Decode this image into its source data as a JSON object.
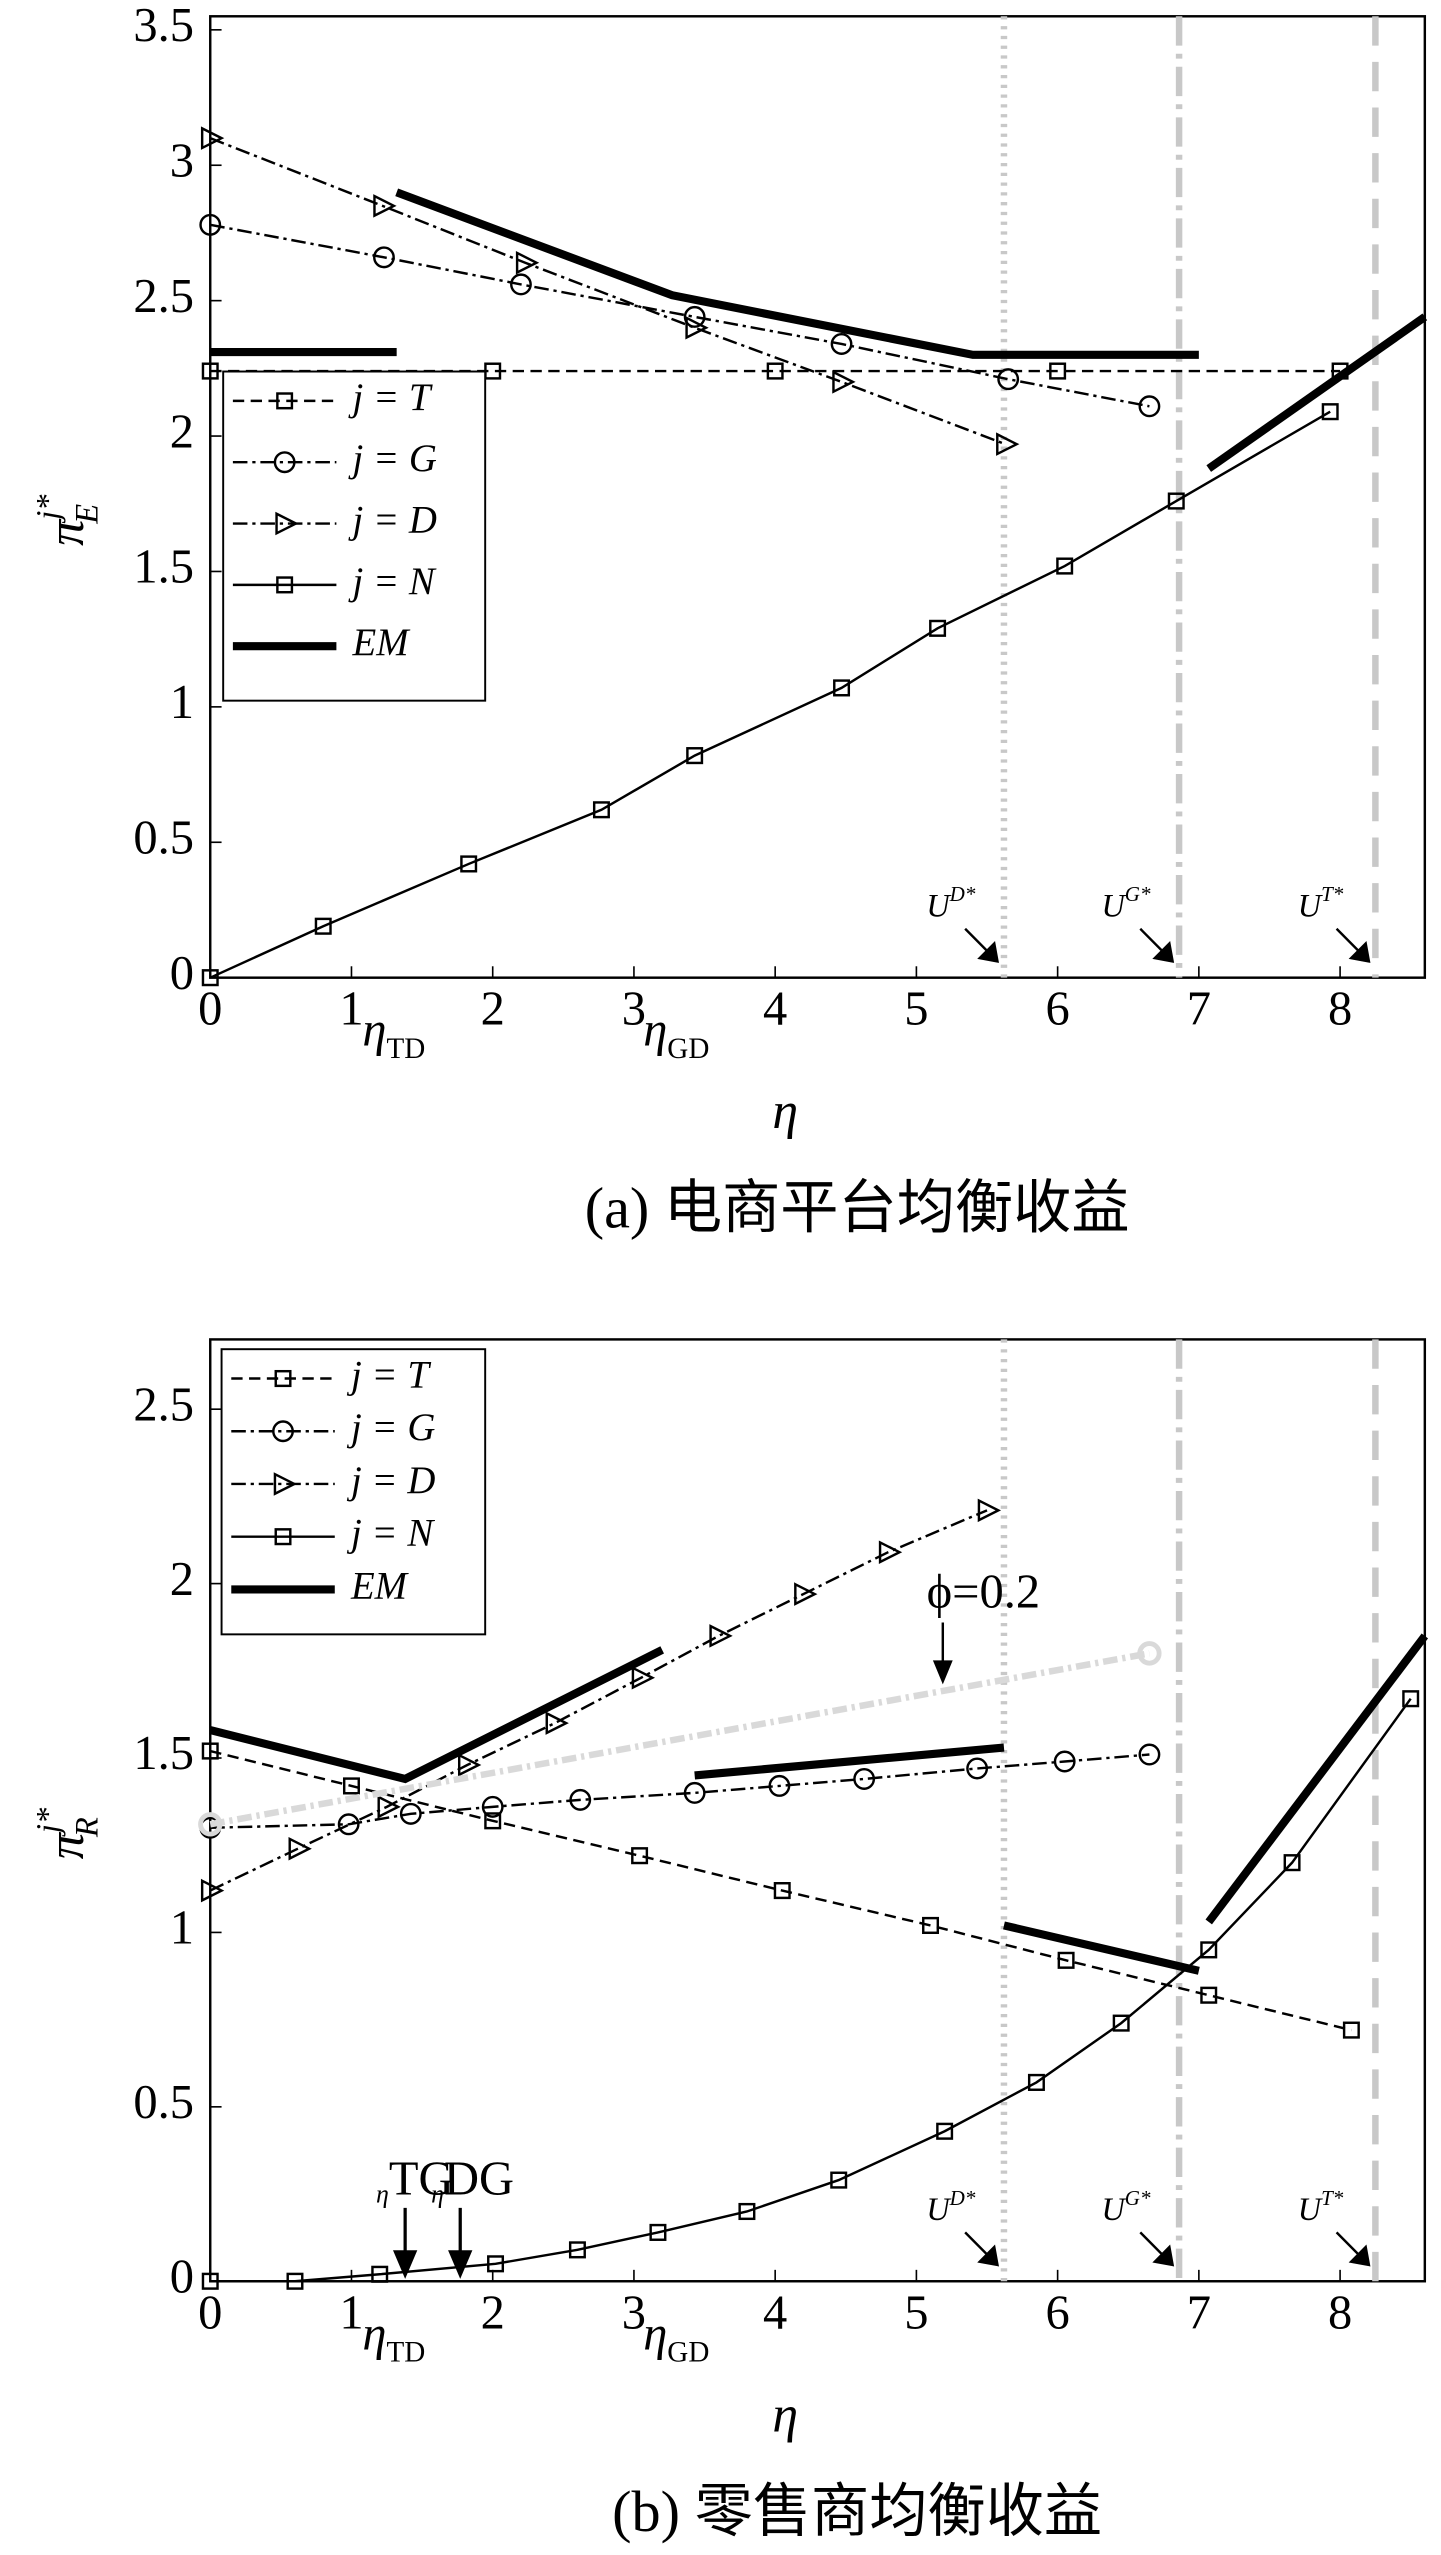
{
  "chart_data": [
    {
      "type": "line",
      "caption": "(a) 电商平台均衡收益",
      "xlabel": "η",
      "ylabel": "π",
      "ylabel_sub": "E",
      "ylabel_sup": "j*",
      "xlim": [
        0,
        8.6
      ],
      "xticks": [
        0,
        1,
        2,
        3,
        4,
        5,
        6,
        7,
        8
      ],
      "ylim": [
        0,
        3.55
      ],
      "yticks": [
        0,
        0.5,
        1,
        1.5,
        2,
        2.5,
        3,
        3.5
      ],
      "series": [
        {
          "name": "j = T",
          "color": "#000000",
          "dash": "dashed",
          "marker": "square",
          "width": 1.5,
          "x": [
            0,
            2,
            4,
            6,
            8
          ],
          "values": [
            2.24,
            2.24,
            2.24,
            2.24,
            2.24
          ]
        },
        {
          "name": "j = G",
          "color": "#000000",
          "dash": "dashdot",
          "marker": "circle",
          "width": 1.5,
          "x": [
            0,
            1.23,
            2.2,
            3.43,
            4.47,
            5.65,
            6.65
          ],
          "values": [
            2.78,
            2.66,
            2.56,
            2.44,
            2.34,
            2.21,
            2.11
          ]
        },
        {
          "name": "j = D",
          "color": "#000000",
          "dash": "dashdot",
          "marker": "triangle",
          "width": 1.5,
          "x": [
            0,
            1.22,
            2.23,
            3.43,
            4.47,
            5.63
          ],
          "values": [
            3.1,
            2.85,
            2.64,
            2.4,
            2.2,
            1.97
          ]
        },
        {
          "name": "j = N",
          "color": "#000000",
          "dash": "solid",
          "marker": "square",
          "width": 1.5,
          "x": [
            0,
            0.8,
            1.83,
            2.77,
            3.43,
            4.47,
            5.15,
            6.05,
            6.84,
            7.93
          ],
          "values": [
            0,
            0.19,
            0.42,
            0.62,
            0.82,
            1.07,
            1.29,
            1.52,
            1.76,
            2.09
          ]
        },
        {
          "name": "EM",
          "color": "#000000",
          "dash": "solid",
          "marker": "none",
          "width": 5,
          "x": [
            0,
            1.32,
            1.32,
            1.32,
            3.27,
            5.4,
            7.0,
            7.0,
            7.07,
            8.6
          ],
          "values": [
            2.31,
            2.31,
            null,
            2.9,
            2.52,
            2.3,
            2.3,
            null,
            1.88,
            2.44
          ]
        }
      ],
      "vlines": [
        {
          "x": 5.62,
          "label": "U",
          "sup": "D*",
          "dash": "dotted"
        },
        {
          "x": 6.86,
          "label": "U",
          "sup": "G*",
          "dash": "dashdot"
        },
        {
          "x": 8.25,
          "label": "U",
          "sup": "T*",
          "dash": "dashed"
        }
      ],
      "eta_labels": [
        {
          "x": 1.3,
          "label": "η",
          "sub": "TD"
        },
        {
          "x": 3.3,
          "label": "η",
          "sub": "GD"
        }
      ]
    },
    {
      "type": "line",
      "caption": "(b) 零售商均衡收益",
      "xlabel": "η",
      "ylabel": "π",
      "ylabel_sub": "R",
      "ylabel_sup": "j*",
      "xlim": [
        0,
        8.6
      ],
      "xticks": [
        0,
        1,
        2,
        3,
        4,
        5,
        6,
        7,
        8
      ],
      "ylim": [
        0,
        2.7
      ],
      "yticks": [
        0,
        0.5,
        1,
        1.5,
        2,
        2.5
      ],
      "series": [
        {
          "name": "j = T",
          "color": "#000000",
          "dash": "dashed",
          "marker": "square",
          "width": 1.5,
          "x": [
            0,
            1.0,
            2.0,
            3.04,
            4.05,
            5.1,
            6.06,
            7.07,
            8.08
          ],
          "values": [
            1.52,
            1.42,
            1.32,
            1.22,
            1.12,
            1.02,
            0.92,
            0.82,
            0.72
          ]
        },
        {
          "name": "j = G",
          "color": "#000000",
          "dash": "dashdot",
          "marker": "circle",
          "width": 1.5,
          "x": [
            0,
            0.98,
            1.42,
            2.0,
            2.62,
            3.43,
            4.03,
            4.63,
            5.43,
            6.05,
            6.65
          ],
          "values": [
            1.3,
            1.31,
            1.34,
            1.36,
            1.38,
            1.4,
            1.42,
            1.44,
            1.47,
            1.49,
            1.51
          ]
        },
        {
          "name": "j = D",
          "color": "#000000",
          "dash": "dashdot",
          "marker": "triangle",
          "width": 1.5,
          "x": [
            0,
            0.62,
            1.25,
            1.82,
            2.44,
            3.05,
            3.6,
            4.2,
            4.8,
            5.5
          ],
          "values": [
            1.12,
            1.24,
            1.36,
            1.48,
            1.6,
            1.73,
            1.85,
            1.97,
            2.09,
            2.21
          ]
        },
        {
          "name": "j = N",
          "color": "#000000",
          "dash": "solid",
          "marker": "square",
          "width": 1.5,
          "x": [
            0,
            0.6,
            1.2,
            2.02,
            2.6,
            3.17,
            3.8,
            4.45,
            5.2,
            5.85,
            6.45,
            7.07,
            7.66,
            8.5
          ],
          "values": [
            0,
            0,
            0.02,
            0.05,
            0.09,
            0.14,
            0.2,
            0.29,
            0.43,
            0.57,
            0.74,
            0.95,
            1.2,
            1.67
          ]
        },
        {
          "name": "EM",
          "color": "#000000",
          "dash": "solid",
          "marker": "none",
          "width": 5,
          "x": [
            0,
            1.38,
            3.2,
            3.2,
            3.43,
            5.62,
            5.62,
            5.62,
            7.0,
            7.0,
            7.07,
            8.6
          ],
          "values": [
            1.58,
            1.44,
            1.81,
            null,
            1.45,
            1.53,
            null,
            1.02,
            0.89,
            null,
            1.03,
            1.85
          ]
        },
        {
          "name": "ϕ=0.2",
          "color": "#d9d9d9",
          "dash": "dashdot",
          "marker": "circle",
          "width": 4,
          "in_legend": false,
          "x": [
            0,
            6.65
          ],
          "values": [
            1.31,
            1.8
          ]
        }
      ],
      "vlines": [
        {
          "x": 5.62,
          "label": "U",
          "sup": "D*",
          "dash": "dotted"
        },
        {
          "x": 6.86,
          "label": "U",
          "sup": "G*",
          "dash": "dashdot"
        },
        {
          "x": 8.25,
          "label": "U",
          "sup": "T*",
          "dash": "dashed"
        }
      ],
      "eta_labels": [
        {
          "x": 1.3,
          "label": "η",
          "sub": "TD"
        },
        {
          "x": 3.3,
          "label": "η",
          "sub": "GD"
        }
      ],
      "arrows": [
        {
          "x": 1.38,
          "label": "η",
          "text": "TG"
        },
        {
          "x": 1.77,
          "label": "η",
          "text": "DG"
        }
      ]
    }
  ]
}
